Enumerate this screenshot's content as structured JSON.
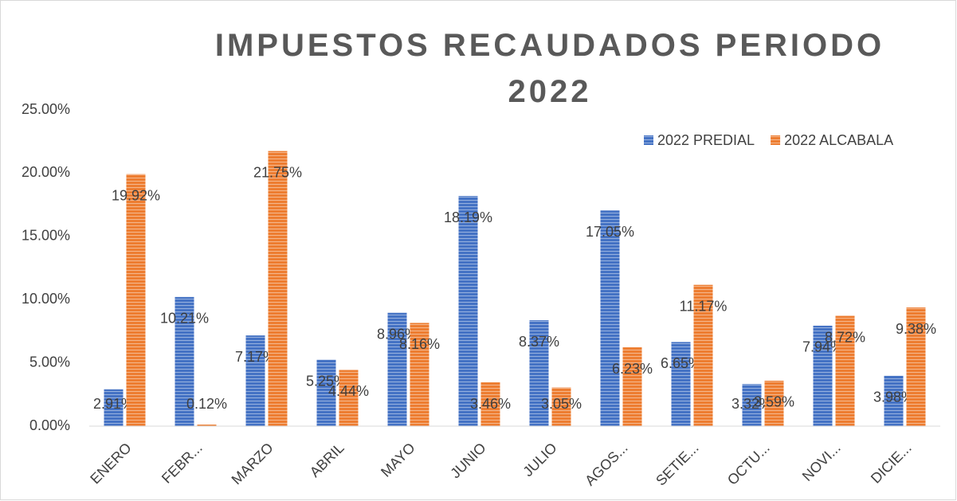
{
  "chart_data": {
    "type": "bar",
    "title": "IMPUESTOS RECAUDADOS PERIODO 2022",
    "categories": [
      "ENERO",
      "FEBR...",
      "MARZO",
      "ABRIL",
      "MAYO",
      "JUNIO",
      "JULIO",
      "AGOS...",
      "SETIE...",
      "OCTU...",
      "NOVI...",
      "DICIE..."
    ],
    "series": [
      {
        "name": "2022 PREDIAL",
        "color": "#4472c4",
        "values": [
          2.91,
          10.21,
          7.17,
          5.25,
          8.96,
          18.19,
          8.37,
          17.05,
          6.65,
          3.32,
          7.94,
          3.98
        ],
        "value_labels": [
          "2.91%",
          "10.21%",
          "7.17%",
          "5.25%",
          "8.96%",
          "18.19%",
          "8.37%",
          "17.05%",
          "6.65%",
          "3.32%",
          "7.94%",
          "3.98%"
        ]
      },
      {
        "name": "2022 ALCABALA",
        "color": "#ed7d31",
        "values": [
          19.92,
          0.12,
          21.75,
          4.44,
          8.16,
          3.46,
          3.05,
          6.23,
          11.17,
          3.59,
          8.72,
          9.38
        ],
        "value_labels": [
          "19.92%",
          "0.12%",
          "21.75%",
          "4.44%",
          "8.16%",
          "3.46%",
          "3.05%",
          "6.23%",
          "11.17%",
          "3.59%",
          "8.72%",
          "9.38%"
        ]
      }
    ],
    "ylim": [
      0,
      25
    ],
    "yticks": [
      {
        "value": 0,
        "label": "0.00%"
      },
      {
        "value": 5,
        "label": "5.00%"
      },
      {
        "value": 10,
        "label": "10.00%"
      },
      {
        "value": 15,
        "label": "15.00%"
      },
      {
        "value": 20,
        "label": "20.00%"
      },
      {
        "value": 25,
        "label": "25.00%"
      }
    ],
    "legend": "top-right",
    "grid": false
  }
}
